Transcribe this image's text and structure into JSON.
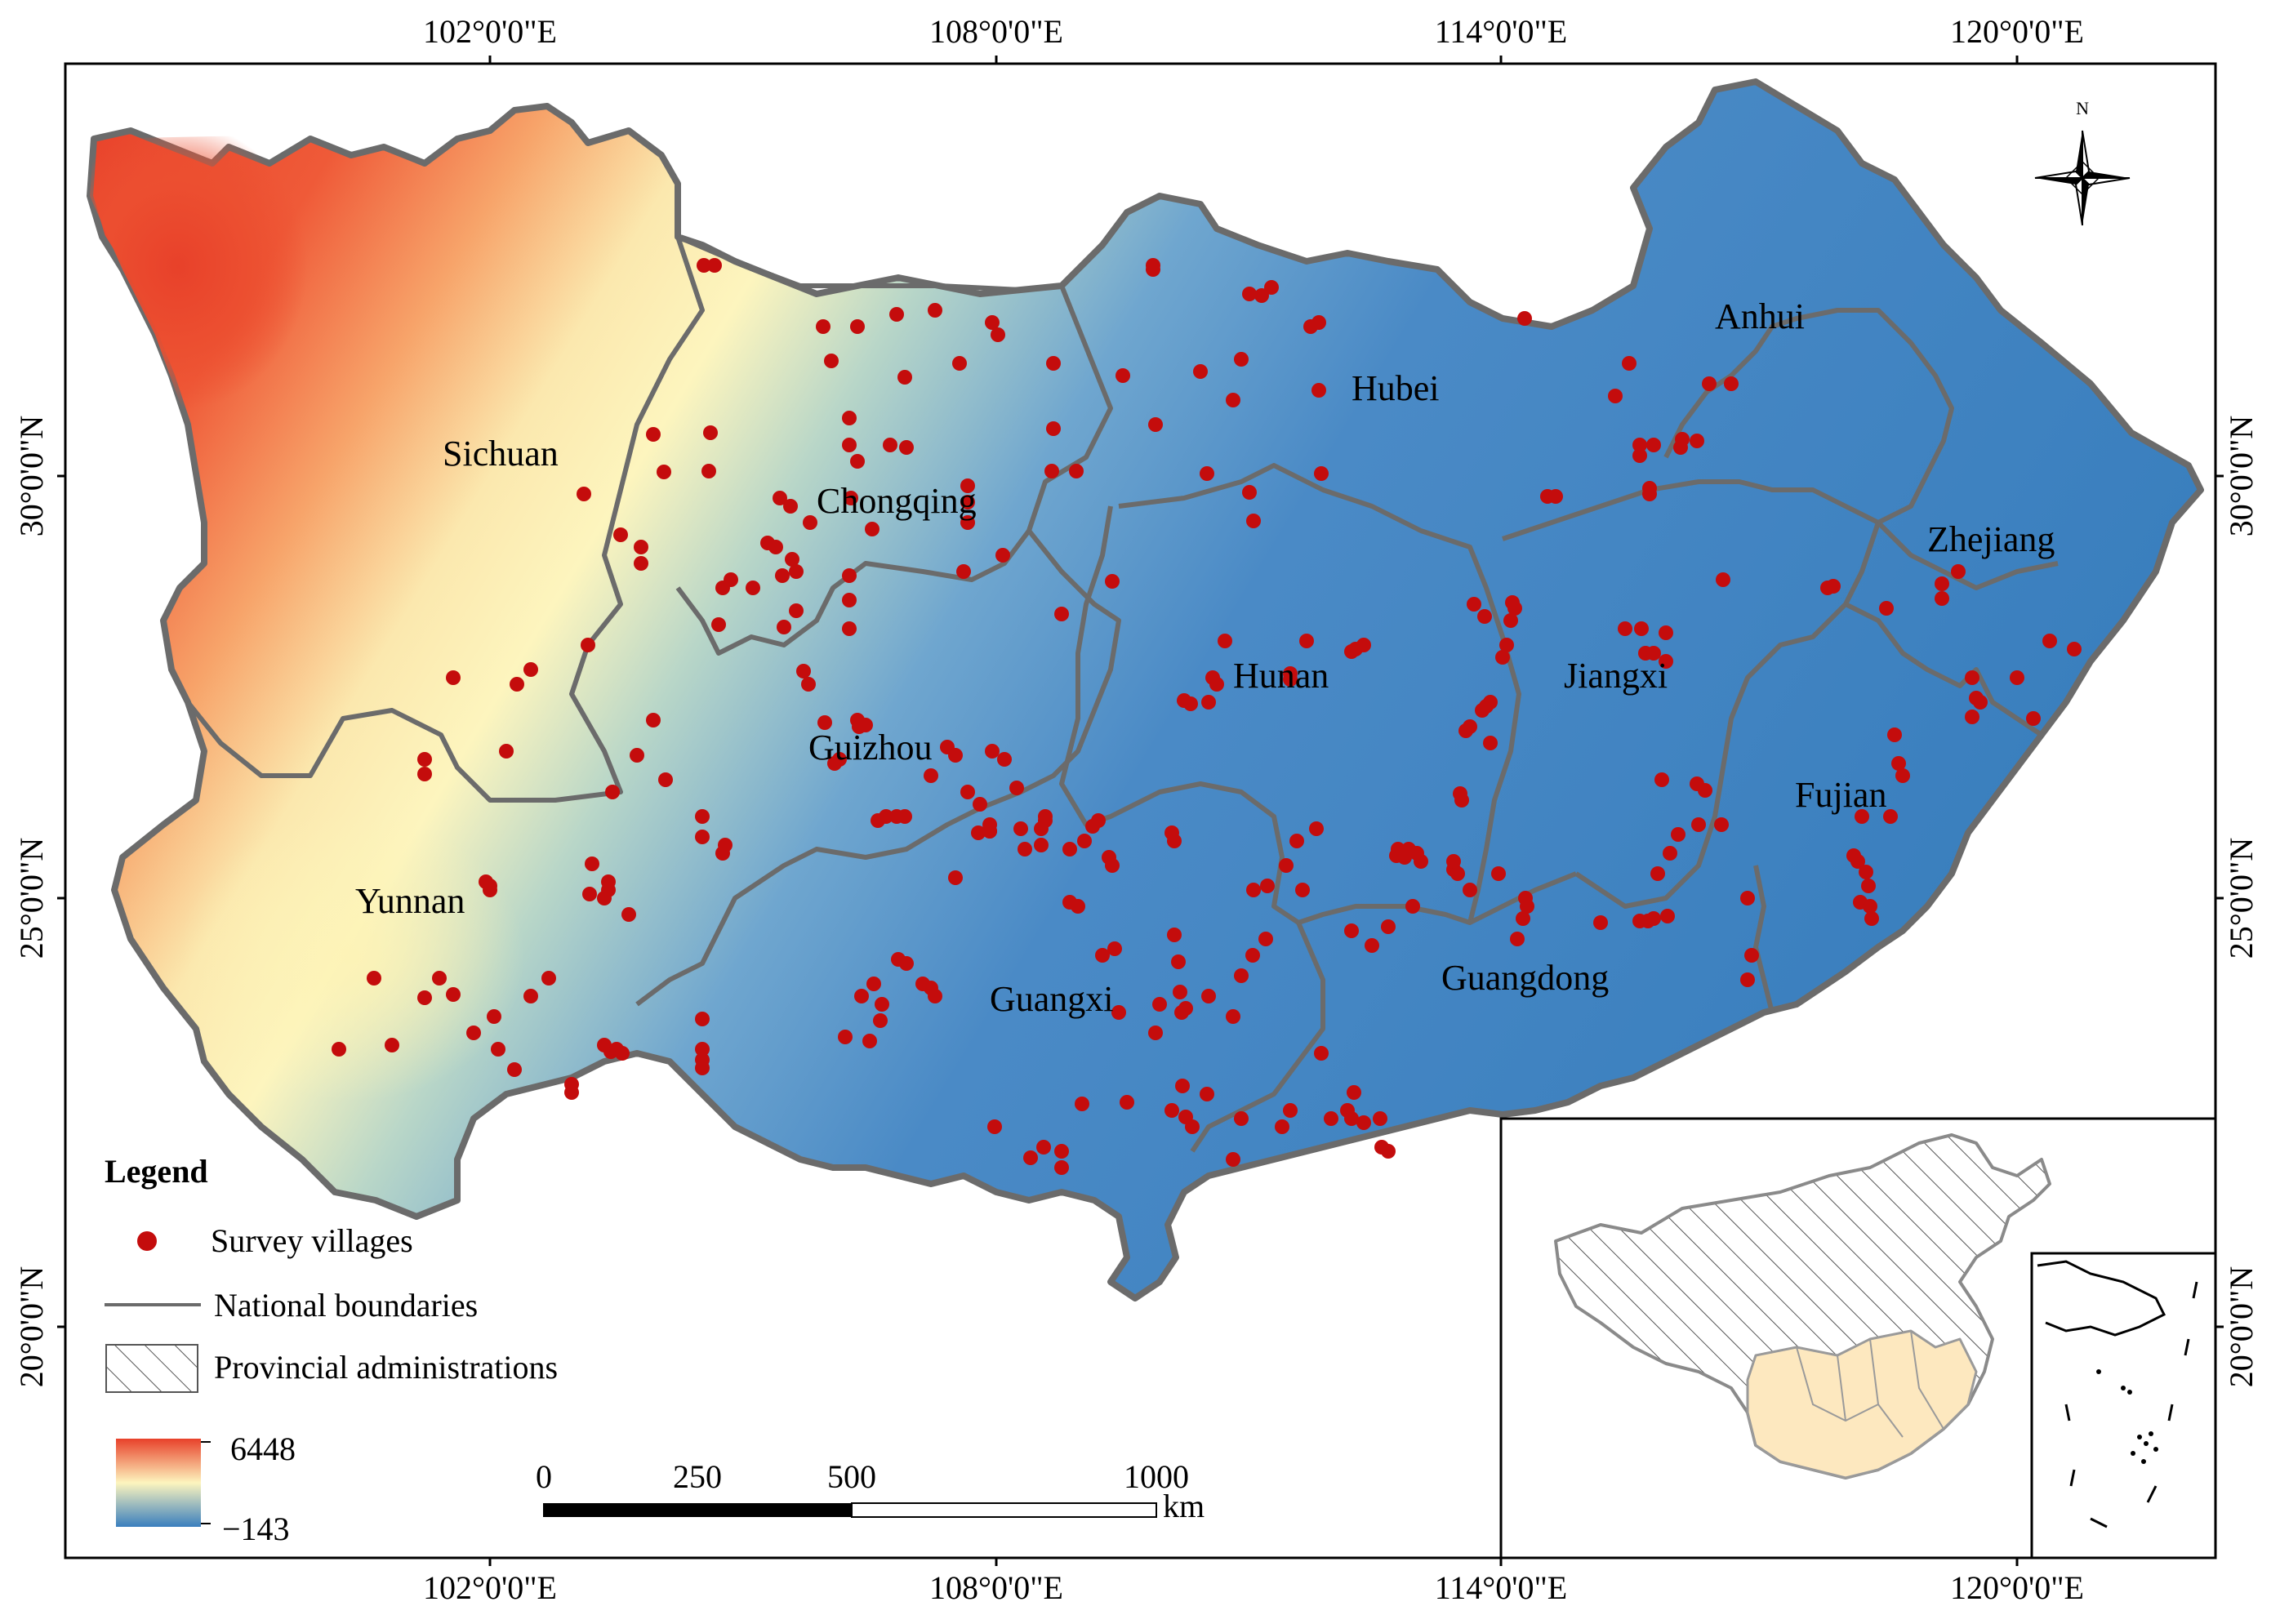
{
  "map": {
    "lon_ticks": [
      "102°0'0\"E",
      "108°0'0\"E",
      "114°0'0\"E",
      "120°0'0\"E"
    ],
    "lat_ticks": [
      "30°0'0\"N",
      "25°0'0\"N",
      "20°0'0\"N"
    ],
    "provinces": [
      {
        "name": "Sichuan"
      },
      {
        "name": "Chongqing"
      },
      {
        "name": "Hubei"
      },
      {
        "name": "Anhui"
      },
      {
        "name": "Zhejiang"
      },
      {
        "name": "Hunan"
      },
      {
        "name": "Jiangxi"
      },
      {
        "name": "Guizhou"
      },
      {
        "name": "Fujian"
      },
      {
        "name": "Yunnan"
      },
      {
        "name": "Guangxi"
      },
      {
        "name": "Guangdong"
      }
    ],
    "north_label": "N"
  },
  "legend": {
    "title": "Legend",
    "survey_villages": "Survey villages",
    "national_boundaries": "National boundaries",
    "provincial_administrations": "Provincial administrations",
    "elevation_max": "6448",
    "elevation_min": "−143"
  },
  "scale_bar": {
    "labels": [
      "0",
      "250",
      "500",
      "1000"
    ],
    "unit": "km"
  },
  "colors": {
    "high": "#e8412a",
    "mid": "#fdf5be",
    "low": "#3a7fbe",
    "village": "#c40c0c",
    "boundary": "#6b6b6b"
  }
}
